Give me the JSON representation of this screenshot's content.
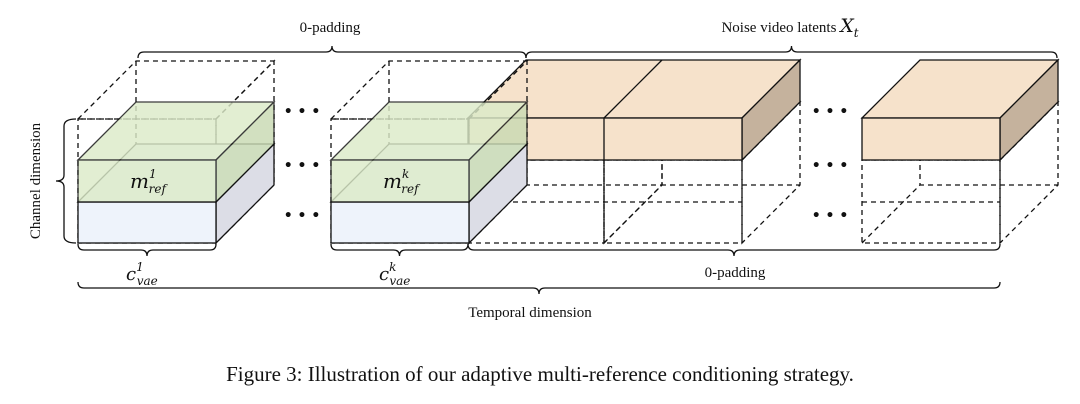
{
  "labels": {
    "top_padding": "0-padding",
    "noise_latents": "Noise video latents ",
    "noise_symbol": "X",
    "noise_subscript": "t",
    "channel_dimension": "Channel dimension",
    "ref_first_base": "m",
    "ref_first_sup": "1",
    "ref_first_sub": "ref",
    "ref_k_base": "m",
    "ref_k_sup": "k",
    "ref_k_sub": "ref",
    "vae_first_base": "c",
    "vae_first_sup": "1",
    "vae_first_sub": "vae",
    "vae_k_base": "c",
    "vae_k_sup": "k",
    "vae_k_sub": "vae",
    "bottom_padding": "0-padding",
    "temporal_dimension": "Temporal dimension",
    "ellipsis": "• • •"
  },
  "caption": "Figure 3: Illustration of our adaptive multi-reference conditioning strategy.",
  "colors": {
    "ref_green": "#dcebc9",
    "ref_green_side": "#c9dab3",
    "vae_blue": "#eef3fb",
    "vae_side": "#dcdde6",
    "noise_orange": "#f6e2cb",
    "noise_side": "#c5b29d"
  }
}
